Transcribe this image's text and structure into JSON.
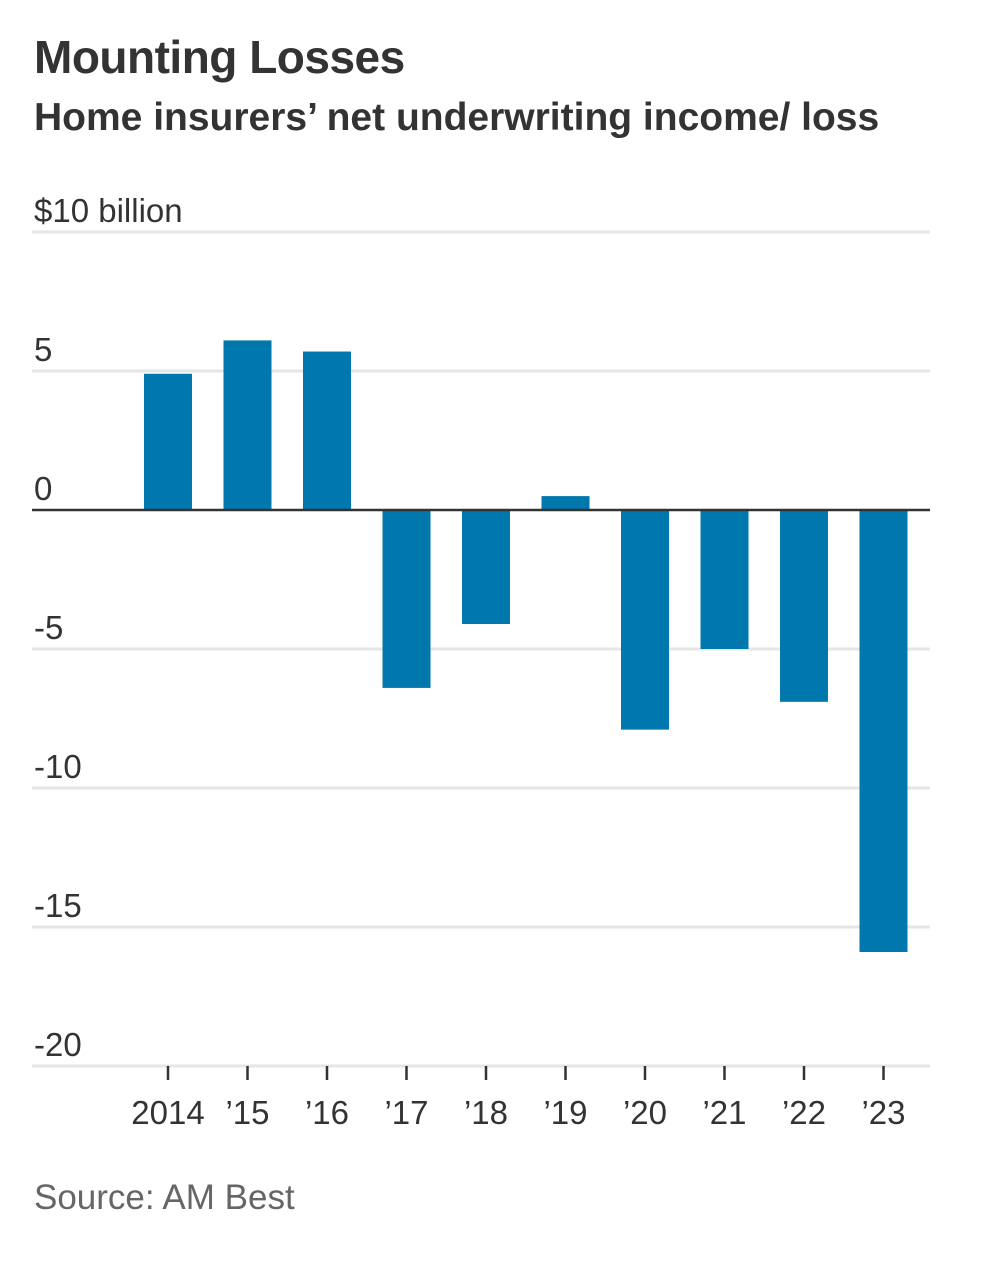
{
  "title": "Mounting Losses",
  "subtitle": "Home insurers’ net underwriting income/ loss",
  "source": "Source: AM Best",
  "colors": {
    "bar": "#0077ad",
    "grid": "#e6e6e6",
    "zero_line": "#333333",
    "text": "#333333",
    "source_text": "#666666"
  },
  "chart_data": {
    "type": "bar",
    "categories": [
      "2014",
      "’15",
      "’16",
      "’17",
      "’18",
      "’19",
      "’20",
      "’21",
      "’22",
      "’23"
    ],
    "values": [
      4.9,
      6.1,
      5.7,
      -6.4,
      -4.1,
      0.5,
      -7.9,
      -5.0,
      -6.9,
      -15.9
    ],
    "y_ticks": [
      10,
      5,
      0,
      -5,
      -10,
      -15,
      -20
    ],
    "y_tick_labels": [
      "$10 billion",
      "5",
      "0",
      "-5",
      "-10",
      "-15",
      "-20"
    ],
    "ylim": [
      -20,
      10
    ],
    "xlabel": "",
    "ylabel": "",
    "grid": true,
    "legend": false
  }
}
